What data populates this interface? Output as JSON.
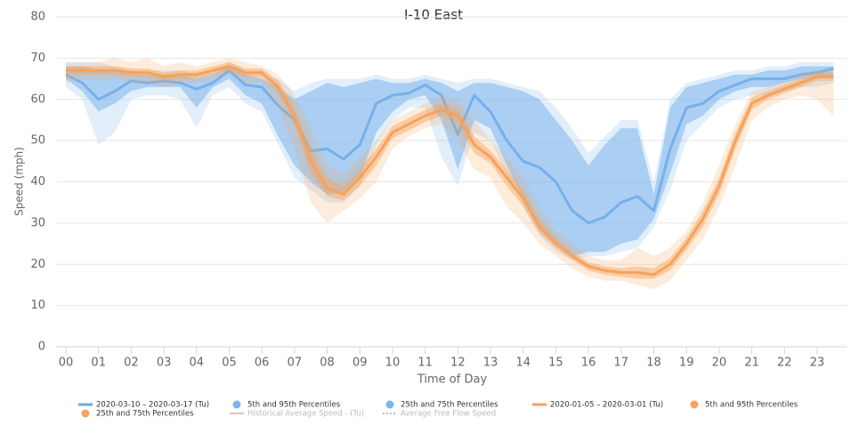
{
  "chart_data": {
    "type": "line",
    "title": "I-10 East",
    "xlabel": "Time of Day",
    "ylabel": "Speed (mph)",
    "xlim": [
      -0.3,
      23.9
    ],
    "ylim": [
      0,
      80
    ],
    "yticks": [
      0,
      10,
      20,
      30,
      40,
      50,
      60,
      70,
      80
    ],
    "xticks": [
      {
        "value": 0,
        "label": "00"
      },
      {
        "value": 1,
        "label": "01"
      },
      {
        "value": 2,
        "label": "02"
      },
      {
        "value": 3,
        "label": "03"
      },
      {
        "value": 4,
        "label": "04"
      },
      {
        "value": 5,
        "label": "05"
      },
      {
        "value": 6,
        "label": "06"
      },
      {
        "value": 7,
        "label": "07"
      },
      {
        "value": 8,
        "label": "08"
      },
      {
        "value": 9,
        "label": "09"
      },
      {
        "value": 10,
        "label": "10"
      },
      {
        "value": 11,
        "label": "11"
      },
      {
        "value": 12,
        "label": "12"
      },
      {
        "value": 13,
        "label": "13"
      },
      {
        "value": 14,
        "label": "14"
      },
      {
        "value": 15,
        "label": "15"
      },
      {
        "value": 16,
        "label": "16"
      },
      {
        "value": 17,
        "label": "17"
      },
      {
        "value": 18,
        "label": "18"
      },
      {
        "value": 19,
        "label": "19"
      },
      {
        "value": 20,
        "label": "20"
      },
      {
        "value": 21,
        "label": "21"
      },
      {
        "value": 22,
        "label": "22"
      },
      {
        "value": 23,
        "label": "23"
      }
    ],
    "grid": true,
    "x": [
      0,
      0.5,
      1,
      1.5,
      2,
      2.5,
      3,
      3.5,
      4,
      4.5,
      5,
      5.5,
      6,
      6.5,
      7,
      7.5,
      8,
      8.5,
      9,
      9.5,
      10,
      10.5,
      11,
      11.5,
      12,
      12.5,
      13,
      13.5,
      14,
      14.5,
      15,
      15.5,
      16,
      16.5,
      17,
      17.5,
      18,
      18.5,
      19,
      19.5,
      20,
      20.5,
      21,
      21.5,
      22,
      22.5,
      23,
      23.5
    ],
    "series": [
      {
        "name": "2020-03-10 – 2020-03-17 (Tu)",
        "kind": "line",
        "color": "#6ea8e6",
        "values": [
          66,
          64,
          60,
          62,
          64.5,
          64,
          64.5,
          64,
          62.5,
          64,
          67,
          63.5,
          63,
          58.5,
          55,
          47.5,
          48,
          45.5,
          49,
          59,
          61,
          61.5,
          63.5,
          61,
          51.5,
          61,
          57,
          50,
          45,
          43.5,
          40,
          33,
          30,
          31.5,
          35,
          36.5,
          33,
          48,
          58,
          59,
          62,
          63.5,
          65,
          65,
          65,
          66,
          66.5,
          67.5
        ]
      },
      {
        "name": "5th and 95th Percentiles",
        "kind": "band",
        "color": "#7cb5ec",
        "opacity": 0.22,
        "low": [
          63,
          60,
          49,
          52,
          60,
          61,
          61,
          60,
          53,
          61,
          63,
          59,
          57,
          49,
          41,
          38,
          35,
          35,
          39,
          49,
          55,
          58,
          58,
          46,
          39,
          52,
          50,
          42,
          34,
          27,
          23,
          21,
          22,
          22,
          23,
          24,
          29,
          38,
          50,
          54,
          58,
          60,
          61,
          61,
          62,
          63,
          63,
          64
        ],
        "high": [
          69,
          69,
          69,
          68,
          67,
          67,
          67,
          67,
          66,
          67,
          69,
          67,
          66,
          65,
          62,
          64,
          65,
          65,
          65,
          66,
          65,
          65,
          66,
          65,
          64,
          65,
          65,
          64,
          63,
          62,
          58,
          53,
          47,
          51,
          55,
          55,
          40,
          60,
          64,
          65,
          66,
          67,
          67,
          68,
          68,
          69,
          69,
          69
        ]
      },
      {
        "name": "25th and 75th Percentiles",
        "kind": "band",
        "color": "#7cb5ec",
        "opacity": 0.55,
        "low": [
          65,
          62,
          57,
          59,
          62,
          63,
          63,
          63,
          58,
          63,
          65,
          61,
          59,
          51,
          44,
          40,
          37,
          37,
          41,
          52,
          57,
          60,
          61,
          55,
          43,
          55,
          53,
          44,
          36,
          29,
          25,
          22,
          23,
          23,
          25,
          26,
          31,
          42,
          54,
          56,
          60,
          62,
          63,
          63,
          64,
          65,
          65,
          66
        ],
        "high": [
          68,
          68,
          67,
          67,
          66,
          66,
          66,
          66,
          65,
          66,
          68,
          66,
          65,
          63,
          60,
          62,
          64,
          63,
          64,
          65,
          64,
          64,
          65,
          64,
          62,
          64,
          64,
          63,
          62,
          60,
          55,
          50,
          44,
          49,
          53,
          53,
          37,
          58,
          63,
          64,
          65,
          66,
          66,
          67,
          67,
          68,
          68,
          68
        ]
      },
      {
        "name": "2020-01-05 – 2020-03-01 (Tu)",
        "kind": "line",
        "color": "#f4a060",
        "values": [
          67,
          67,
          67,
          67,
          66.5,
          66.5,
          65.5,
          66,
          66,
          67,
          68,
          66.5,
          66.5,
          63,
          56,
          45,
          38.5,
          37,
          41,
          46,
          52,
          54,
          56,
          57.5,
          56,
          49,
          46,
          41,
          36,
          29,
          25,
          22,
          19.5,
          18.5,
          18,
          18,
          17.5,
          20,
          25,
          31,
          39,
          50,
          59,
          61,
          62.5,
          64,
          65.5,
          65.5
        ]
      },
      {
        "name": "5th and 95th Percentiles",
        "kind": "band",
        "color": "#f7a35c",
        "opacity": 0.22,
        "low": [
          64,
          65,
          65,
          65,
          64,
          64,
          63,
          64,
          64,
          65,
          66,
          64,
          64,
          58,
          48,
          35,
          30,
          33,
          36,
          40,
          48,
          51,
          53,
          54,
          50,
          43,
          41,
          34,
          30,
          25,
          22,
          19,
          17,
          16,
          16,
          15,
          14,
          16,
          21,
          26,
          34,
          44,
          55,
          58,
          60,
          61,
          60,
          56
        ],
        "high": [
          69,
          69,
          69,
          70,
          69,
          70,
          68,
          69,
          68,
          69,
          70,
          69,
          68,
          66,
          61,
          53,
          44,
          42,
          46,
          50,
          55,
          57,
          59,
          61,
          60,
          55,
          50,
          46,
          41,
          34,
          28,
          25,
          22,
          21,
          21,
          24,
          22,
          24,
          28,
          35,
          44,
          54,
          62,
          63,
          64,
          66,
          67,
          67
        ]
      },
      {
        "name": "25th and 75th Percentiles",
        "kind": "band",
        "color": "#f7a35c",
        "opacity": 0.45,
        "low": [
          66,
          66,
          66,
          66,
          65.5,
          65.5,
          64.5,
          65,
          65,
          66,
          67,
          65.5,
          65.5,
          61.5,
          54,
          42,
          36.5,
          35.5,
          39,
          44,
          50.5,
          52.5,
          54.5,
          56,
          54,
          47,
          44.5,
          39,
          34,
          27.5,
          24,
          21,
          18.5,
          17.5,
          17,
          16.5,
          16.5,
          18.5,
          23.5,
          29,
          37,
          48,
          57.5,
          60,
          61.5,
          63,
          64.5,
          64.5
        ],
        "high": [
          68,
          68,
          68,
          68,
          67.5,
          67.5,
          66.5,
          67,
          67,
          68,
          69,
          67.5,
          67.5,
          64.5,
          58,
          48,
          41,
          39,
          43,
          48,
          53.5,
          55.5,
          57.5,
          59,
          58,
          51,
          47.5,
          43,
          38,
          31,
          26.5,
          23,
          20.5,
          19.5,
          19,
          19.5,
          19,
          21.5,
          26.5,
          33,
          41,
          52,
          60.5,
          62,
          63.5,
          65,
          66.5,
          66.5
        ]
      },
      {
        "name": "Historical Average Speed - (Tu)",
        "kind": "legend-line",
        "color": "#cccccc"
      },
      {
        "name": "Average Free Flow Speed",
        "kind": "legend-dotted",
        "color": "#bbbbbb"
      }
    ]
  }
}
